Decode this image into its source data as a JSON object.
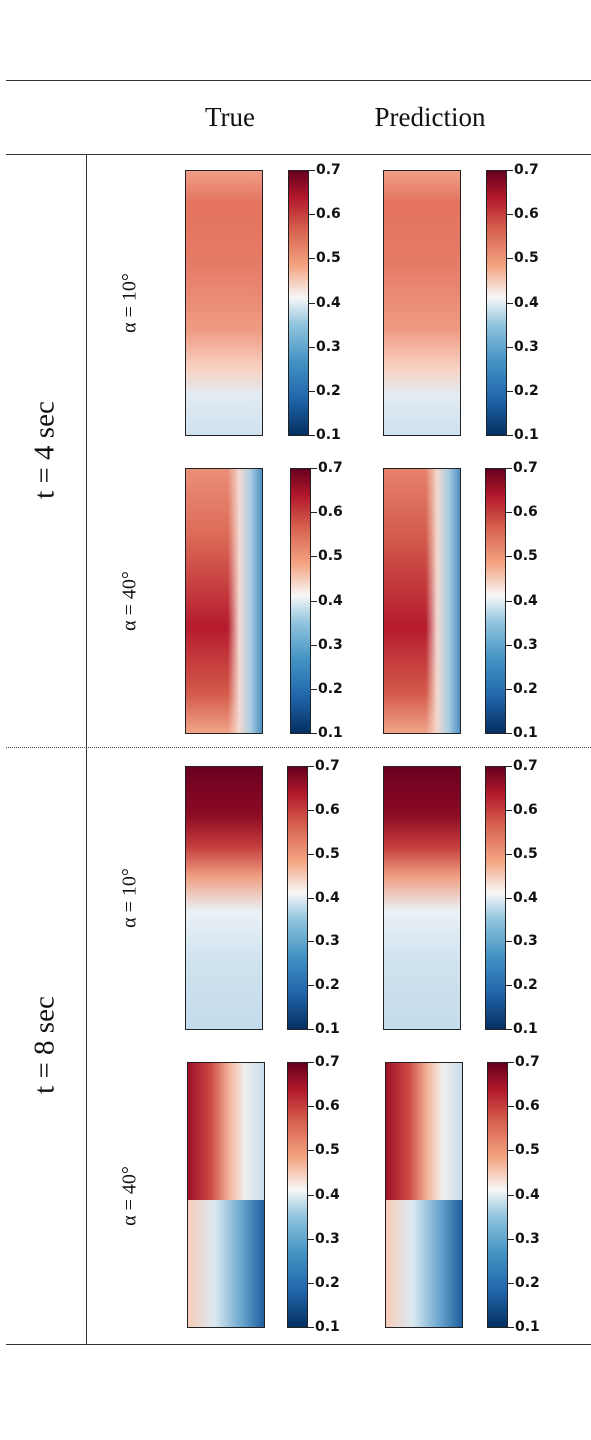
{
  "header": {
    "col_true": "True",
    "col_pred": "Prediction"
  },
  "times": [
    {
      "label": "t = 4 sec",
      "rows": [
        {
          "angle": "α = 10°"
        },
        {
          "angle": "α = 40°"
        }
      ]
    },
    {
      "label": "t = 8 sec",
      "rows": [
        {
          "angle": "α = 10°"
        },
        {
          "angle": "α = 40°"
        }
      ]
    }
  ],
  "colorbar": {
    "ticks": [
      "0.7",
      "0.6",
      "0.5",
      "0.4",
      "0.3",
      "0.2",
      "0.1"
    ],
    "range": [
      0.1,
      0.7
    ],
    "colormap": "RdBu_r",
    "colors": [
      "#053061",
      "#2166ac",
      "#4393c3",
      "#92c5de",
      "#f7f7f7",
      "#f4a582",
      "#d6604d",
      "#b2182b",
      "#67001f"
    ]
  }
}
